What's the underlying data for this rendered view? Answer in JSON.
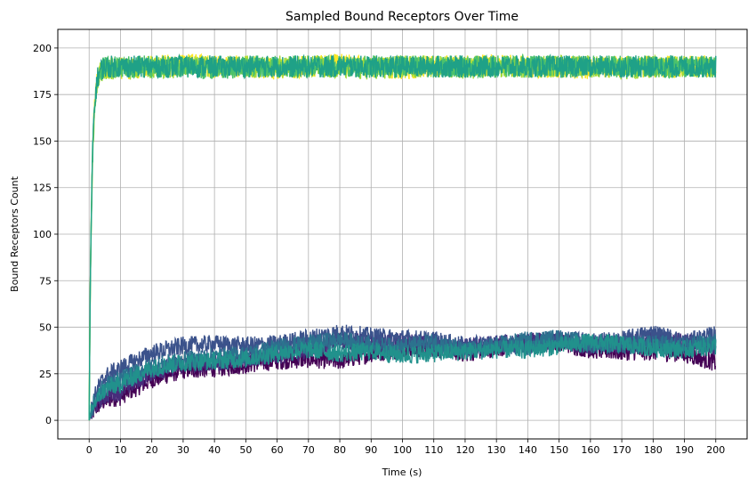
{
  "chart_data": {
    "type": "line",
    "title": "Sampled Bound Receptors Over Time",
    "xlabel": "Time (s)",
    "ylabel": "Bound Receptors Count",
    "xlim": [
      -10,
      210
    ],
    "ylim": [
      -10,
      210
    ],
    "xticks": [
      0,
      10,
      20,
      30,
      40,
      50,
      60,
      70,
      80,
      90,
      100,
      110,
      120,
      130,
      140,
      150,
      160,
      170,
      180,
      190,
      200
    ],
    "yticks": [
      0,
      25,
      50,
      75,
      100,
      125,
      150,
      175,
      200
    ],
    "grid": true,
    "legend": "none",
    "series": [
      {
        "color": "#440154",
        "values_at_xticks": [
          0,
          13,
          22,
          27,
          28,
          30,
          32,
          33,
          32,
          36,
          38,
          39,
          36,
          39,
          41,
          42,
          38,
          37,
          37,
          36,
          31
        ]
      },
      {
        "color": "#472d7b",
        "values_at_xticks": [
          0,
          16,
          26,
          30,
          31,
          33,
          35,
          38,
          43,
          41,
          42,
          40,
          39,
          41,
          42,
          43,
          40,
          41,
          43,
          42,
          40
        ]
      },
      {
        "color": "#3b528b",
        "values_at_xticks": [
          0,
          28,
          36,
          40,
          41,
          40,
          41,
          44,
          47,
          45,
          44,
          43,
          40,
          41,
          40,
          44,
          42,
          43,
          47,
          42,
          46
        ]
      },
      {
        "color": "#2c728e",
        "values_at_xticks": [
          0,
          22,
          29,
          32,
          34,
          35,
          39,
          41,
          43,
          40,
          39,
          42,
          37,
          40,
          43,
          44,
          41,
          40,
          41,
          40,
          42
        ]
      },
      {
        "color": "#21918c",
        "values_at_xticks": [
          0,
          20,
          28,
          31,
          32,
          33,
          36,
          38,
          36,
          37,
          35,
          36,
          37,
          38,
          38,
          40,
          42,
          41,
          39,
          38,
          40
        ]
      },
      {
        "color": "#fde725",
        "values_at_xticks": [
          0,
          189,
          190,
          191,
          190,
          190,
          189,
          190,
          191,
          190,
          189,
          190,
          190,
          191,
          190,
          190,
          189,
          190,
          190,
          190,
          190
        ]
      },
      {
        "color": "#a0da39",
        "values_at_xticks": [
          0,
          189,
          189,
          190,
          190,
          190,
          190,
          190,
          190,
          189,
          190,
          190,
          189,
          190,
          190,
          190,
          190,
          189,
          190,
          190,
          190
        ]
      },
      {
        "color": "#4ac16d",
        "values_at_xticks": [
          0,
          190,
          190,
          190,
          189,
          190,
          190,
          190,
          190,
          190,
          190,
          190,
          190,
          190,
          190,
          190,
          190,
          190,
          190,
          190,
          190
        ]
      },
      {
        "color": "#1fa187",
        "values_at_xticks": [
          0,
          190,
          190,
          190,
          190,
          190,
          190,
          190,
          190,
          190,
          190,
          190,
          190,
          190,
          190,
          190,
          190,
          190,
          190,
          190,
          190
        ]
      }
    ]
  }
}
